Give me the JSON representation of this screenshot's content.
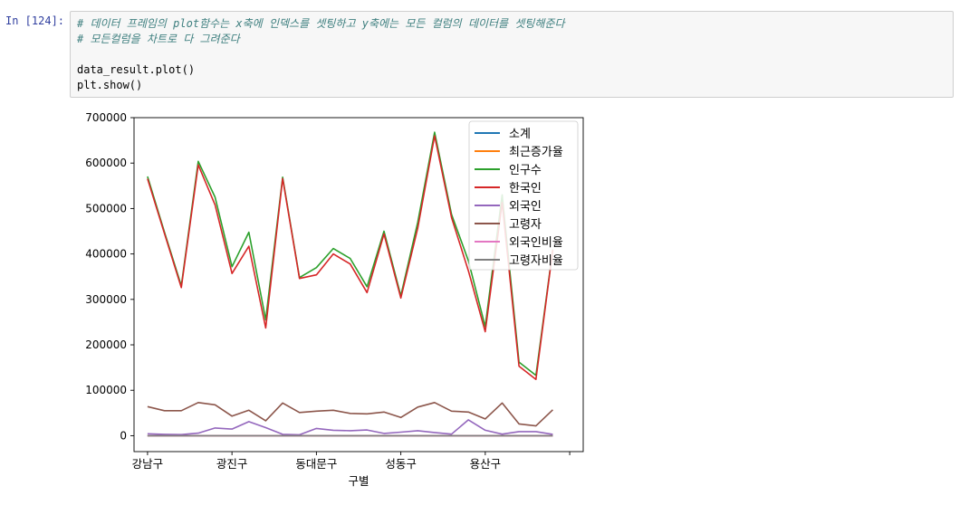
{
  "prompt_label": "In [124]:",
  "code": {
    "lines": [
      {
        "text": "# 데이터 프레임의 plot함수는 x축에 인덱스를 셋팅하고 y축에는 모든 컬럼의 데이터를 셋팅해준다",
        "kind": "comment"
      },
      {
        "text": "# 모든컬럼을 차트로 다 그려준다",
        "kind": "comment"
      },
      {
        "text": "",
        "kind": "code"
      },
      {
        "text": "data_result.plot()",
        "kind": "code"
      },
      {
        "text": "plt.show()",
        "kind": "code"
      }
    ]
  },
  "chart_data": {
    "type": "line",
    "xlabel": "구별",
    "ylabel": "",
    "ylim": [
      -35000,
      700000
    ],
    "xlim": [
      -0.8,
      25.8
    ],
    "grid": false,
    "legend_position": "top-right",
    "x": [
      0,
      1,
      2,
      3,
      4,
      5,
      6,
      7,
      8,
      9,
      10,
      11,
      12,
      13,
      14,
      15,
      16,
      17,
      18,
      19,
      20,
      21,
      22,
      23,
      24
    ],
    "xtick_labels": [
      {
        "pos": 0,
        "label": "강남구"
      },
      {
        "pos": 5,
        "label": "광진구"
      },
      {
        "pos": 10,
        "label": "동대문구"
      },
      {
        "pos": 15,
        "label": "성동구"
      },
      {
        "pos": 20,
        "label": "용산구"
      },
      {
        "pos": 25,
        "label": ""
      }
    ],
    "ytick_labels": [
      0,
      100000,
      200000,
      300000,
      400000,
      500000,
      600000,
      700000
    ],
    "series": [
      {
        "name": "소계",
        "color": "#1f77b4",
        "values": [
          0,
          0,
          0,
          0,
          0,
          0,
          0,
          0,
          0,
          0,
          0,
          0,
          0,
          0,
          0,
          0,
          0,
          0,
          0,
          0,
          0,
          0,
          0,
          0,
          0
        ]
      },
      {
        "name": "최근증가율",
        "color": "#ff7f0e",
        "values": [
          0,
          0,
          0,
          0,
          0,
          0,
          0,
          0,
          0,
          0,
          0,
          0,
          0,
          0,
          0,
          0,
          0,
          0,
          0,
          0,
          0,
          0,
          0,
          0,
          0
        ]
      },
      {
        "name": "인구수",
        "color": "#2ca02c",
        "values": [
          570500,
          448000,
          330000,
          603800,
          525000,
          372000,
          447800,
          255000,
          569000,
          348000,
          370000,
          412000,
          390000,
          328000,
          450000,
          308000,
          470000,
          668000,
          487000,
          385000,
          240000,
          530000,
          162000,
          133000,
          410000
        ]
      },
      {
        "name": "한국인",
        "color": "#d62728",
        "values": [
          565500,
          445000,
          326000,
          596000,
          508000,
          357000,
          417000,
          237000,
          566000,
          346000,
          354000,
          400000,
          378000,
          315000,
          444000,
          303000,
          457000,
          660000,
          480000,
          363000,
          229000,
          513000,
          153000,
          124000,
          409000
        ]
      },
      {
        "name": "외국인",
        "color": "#9467bd",
        "values": [
          4300,
          3000,
          2400,
          5600,
          17000,
          14600,
          31000,
          17800,
          3000,
          2000,
          16000,
          12000,
          11000,
          12700,
          5000,
          7800,
          11000,
          7000,
          3500,
          35000,
          12000,
          3500,
          9000,
          9000,
          3000
        ]
      },
      {
        "name": "고령자",
        "color": "#8c564b",
        "values": [
          64000,
          55000,
          55000,
          73000,
          68000,
          43000,
          56000,
          33000,
          72000,
          51000,
          54000,
          56000,
          49000,
          48000,
          52000,
          40000,
          63000,
          73000,
          54000,
          52000,
          37000,
          72000,
          26000,
          21500,
          57000
        ]
      },
      {
        "name": "외국인비율",
        "color": "#e377c2",
        "values": [
          1,
          1,
          1,
          1,
          3,
          4,
          7,
          7,
          1,
          1,
          4,
          3,
          3,
          4,
          1,
          3,
          2,
          1,
          1,
          9,
          5,
          1,
          6,
          7,
          1
        ]
      },
      {
        "name": "고령자비율",
        "color": "#7f7f7f",
        "values": [
          11,
          12,
          17,
          12,
          13,
          12,
          13,
          13,
          13,
          15,
          15,
          14,
          13,
          15,
          12,
          13,
          14,
          11,
          11,
          14,
          16,
          14,
          16,
          16,
          14
        ]
      }
    ]
  }
}
